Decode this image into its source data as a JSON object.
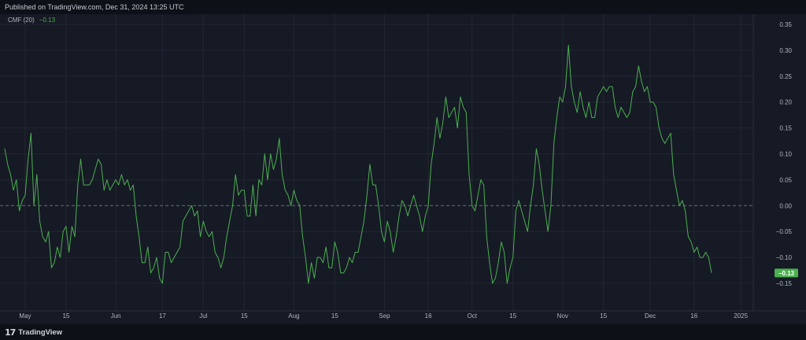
{
  "header": {
    "published_text": "Published on TradingView.com, Dec 31, 2024 13:25 UTC"
  },
  "legend": {
    "indicator": "CMF (20)",
    "value": "−0.13"
  },
  "footer": {
    "logo_text": "TradingView",
    "logo_mark": "17"
  },
  "colors": {
    "background": "#161a25",
    "grid": "#232733",
    "line": "#4caf50",
    "zero_line": "#6b6f7a",
    "badge": "#4caf50",
    "axis_text": "#b2b5be"
  },
  "chart_data": {
    "type": "line",
    "title": "",
    "xlabel": "",
    "ylabel": "",
    "ylim": [
      -0.165,
      0.355
    ],
    "grid": true,
    "zero_line": "dashed",
    "last_value_label": "−0.13",
    "y_ticks": [
      {
        "value": 0.35,
        "label": "0.35"
      },
      {
        "value": 0.3,
        "label": "0.30"
      },
      {
        "value": 0.25,
        "label": "0.25"
      },
      {
        "value": 0.2,
        "label": "0.20"
      },
      {
        "value": 0.15,
        "label": "0.15"
      },
      {
        "value": 0.1,
        "label": "0.10"
      },
      {
        "value": 0.05,
        "label": "0.05"
      },
      {
        "value": 0.0,
        "label": "0.00"
      },
      {
        "value": -0.05,
        "label": "−0.05"
      },
      {
        "value": -0.1,
        "label": "−0.10"
      },
      {
        "value": -0.15,
        "label": "−0.15"
      }
    ],
    "x_domain": [
      "2024-04-24",
      "2025-01-05"
    ],
    "x_ticks": [
      {
        "date": "2024-05-01",
        "label": "May"
      },
      {
        "date": "2024-05-15",
        "label": "15"
      },
      {
        "date": "2024-06-01",
        "label": "Jun"
      },
      {
        "date": "2024-06-17",
        "label": "17"
      },
      {
        "date": "2024-07-01",
        "label": "Jul"
      },
      {
        "date": "2024-07-15",
        "label": "15"
      },
      {
        "date": "2024-08-01",
        "label": "Aug"
      },
      {
        "date": "2024-08-15",
        "label": "15"
      },
      {
        "date": "2024-09-01",
        "label": "Sep"
      },
      {
        "date": "2024-09-16",
        "label": "16"
      },
      {
        "date": "2024-10-01",
        "label": "Oct"
      },
      {
        "date": "2024-10-15",
        "label": "15"
      },
      {
        "date": "2024-11-01",
        "label": "Nov"
      },
      {
        "date": "2024-11-15",
        "label": "15"
      },
      {
        "date": "2024-12-01",
        "label": "Dec"
      },
      {
        "date": "2024-12-16",
        "label": "16"
      },
      {
        "date": "2025-01-01",
        "label": "2025"
      }
    ],
    "series": [
      {
        "points": [
          [
            "2024-04-24",
            0.11
          ],
          [
            "2024-04-25",
            0.08
          ],
          [
            "2024-04-26",
            0.06
          ],
          [
            "2024-04-27",
            0.03
          ],
          [
            "2024-04-28",
            0.05
          ],
          [
            "2024-04-29",
            -0.01
          ],
          [
            "2024-04-30",
            0.01
          ],
          [
            "2024-05-01",
            0.02
          ],
          [
            "2024-05-02",
            0.09
          ],
          [
            "2024-05-03",
            0.14
          ],
          [
            "2024-05-04",
            0.0
          ],
          [
            "2024-05-05",
            0.06
          ],
          [
            "2024-05-06",
            -0.03
          ],
          [
            "2024-05-07",
            -0.06
          ],
          [
            "2024-05-08",
            -0.07
          ],
          [
            "2024-05-09",
            -0.05
          ],
          [
            "2024-05-10",
            -0.12
          ],
          [
            "2024-05-11",
            -0.11
          ],
          [
            "2024-05-12",
            -0.08
          ],
          [
            "2024-05-13",
            -0.1
          ],
          [
            "2024-05-14",
            -0.05
          ],
          [
            "2024-05-15",
            -0.04
          ],
          [
            "2024-05-16",
            -0.09
          ],
          [
            "2024-05-17",
            -0.04
          ],
          [
            "2024-05-18",
            -0.06
          ],
          [
            "2024-05-19",
            0.04
          ],
          [
            "2024-05-20",
            0.09
          ],
          [
            "2024-05-21",
            0.04
          ],
          [
            "2024-05-22",
            0.04
          ],
          [
            "2024-05-23",
            0.04
          ],
          [
            "2024-05-24",
            0.05
          ],
          [
            "2024-05-25",
            0.07
          ],
          [
            "2024-05-26",
            0.09
          ],
          [
            "2024-05-27",
            0.08
          ],
          [
            "2024-05-28",
            0.03
          ],
          [
            "2024-05-29",
            0.05
          ],
          [
            "2024-05-30",
            0.03
          ],
          [
            "2024-05-31",
            0.04
          ],
          [
            "2024-06-01",
            0.05
          ],
          [
            "2024-06-02",
            0.04
          ],
          [
            "2024-06-03",
            0.06
          ],
          [
            "2024-06-04",
            0.04
          ],
          [
            "2024-06-05",
            0.05
          ],
          [
            "2024-06-06",
            0.03
          ],
          [
            "2024-06-07",
            0.04
          ],
          [
            "2024-06-08",
            -0.02
          ],
          [
            "2024-06-09",
            -0.06
          ],
          [
            "2024-06-10",
            -0.11
          ],
          [
            "2024-06-11",
            -0.11
          ],
          [
            "2024-06-12",
            -0.08
          ],
          [
            "2024-06-13",
            -0.13
          ],
          [
            "2024-06-14",
            -0.12
          ],
          [
            "2024-06-15",
            -0.1
          ],
          [
            "2024-06-16",
            -0.14
          ],
          [
            "2024-06-17",
            -0.15
          ],
          [
            "2024-06-18",
            -0.09
          ],
          [
            "2024-06-19",
            -0.09
          ],
          [
            "2024-06-20",
            -0.11
          ],
          [
            "2024-06-21",
            -0.1
          ],
          [
            "2024-06-22",
            -0.09
          ],
          [
            "2024-06-23",
            -0.08
          ],
          [
            "2024-06-24",
            -0.03
          ],
          [
            "2024-06-25",
            -0.02
          ],
          [
            "2024-06-26",
            -0.01
          ],
          [
            "2024-06-27",
            0.0
          ],
          [
            "2024-06-28",
            -0.02
          ],
          [
            "2024-06-29",
            -0.01
          ],
          [
            "2024-06-30",
            -0.06
          ],
          [
            "2024-07-01",
            -0.03
          ],
          [
            "2024-07-02",
            -0.05
          ],
          [
            "2024-07-03",
            -0.06
          ],
          [
            "2024-07-04",
            -0.05
          ],
          [
            "2024-07-05",
            -0.09
          ],
          [
            "2024-07-06",
            -0.1
          ],
          [
            "2024-07-07",
            -0.12
          ],
          [
            "2024-07-08",
            -0.1
          ],
          [
            "2024-07-09",
            -0.06
          ],
          [
            "2024-07-10",
            -0.03
          ],
          [
            "2024-07-11",
            0.0
          ],
          [
            "2024-07-12",
            0.06
          ],
          [
            "2024-07-13",
            0.02
          ],
          [
            "2024-07-14",
            0.03
          ],
          [
            "2024-07-15",
            0.03
          ],
          [
            "2024-07-16",
            -0.02
          ],
          [
            "2024-07-17",
            -0.02
          ],
          [
            "2024-07-18",
            0.04
          ],
          [
            "2024-07-19",
            -0.02
          ],
          [
            "2024-07-20",
            0.05
          ],
          [
            "2024-07-21",
            0.04
          ],
          [
            "2024-07-22",
            0.1
          ],
          [
            "2024-07-23",
            0.05
          ],
          [
            "2024-07-24",
            0.1
          ],
          [
            "2024-07-25",
            0.07
          ],
          [
            "2024-07-26",
            0.09
          ],
          [
            "2024-07-27",
            0.13
          ],
          [
            "2024-07-28",
            0.06
          ],
          [
            "2024-07-29",
            0.03
          ],
          [
            "2024-07-30",
            0.02
          ],
          [
            "2024-07-31",
            0.0
          ],
          [
            "2024-08-01",
            0.03
          ],
          [
            "2024-08-02",
            0.01
          ],
          [
            "2024-08-03",
            0.0
          ],
          [
            "2024-08-04",
            -0.06
          ],
          [
            "2024-08-05",
            -0.1
          ],
          [
            "2024-08-06",
            -0.15
          ],
          [
            "2024-08-07",
            -0.11
          ],
          [
            "2024-08-08",
            -0.14
          ],
          [
            "2024-08-09",
            -0.1
          ],
          [
            "2024-08-10",
            -0.1
          ],
          [
            "2024-08-11",
            -0.11
          ],
          [
            "2024-08-12",
            -0.08
          ],
          [
            "2024-08-13",
            -0.12
          ],
          [
            "2024-08-14",
            -0.12
          ],
          [
            "2024-08-15",
            -0.07
          ],
          [
            "2024-08-16",
            -0.09
          ],
          [
            "2024-08-17",
            -0.13
          ],
          [
            "2024-08-18",
            -0.13
          ],
          [
            "2024-08-19",
            -0.12
          ],
          [
            "2024-08-20",
            -0.1
          ],
          [
            "2024-08-21",
            -0.11
          ],
          [
            "2024-08-22",
            -0.09
          ],
          [
            "2024-08-23",
            -0.09
          ],
          [
            "2024-08-24",
            -0.06
          ],
          [
            "2024-08-25",
            -0.03
          ],
          [
            "2024-08-26",
            0.02
          ],
          [
            "2024-08-27",
            0.08
          ],
          [
            "2024-08-28",
            0.04
          ],
          [
            "2024-08-29",
            0.04
          ],
          [
            "2024-08-30",
            0.0
          ],
          [
            "2024-08-31",
            -0.05
          ],
          [
            "2024-09-01",
            -0.07
          ],
          [
            "2024-09-02",
            -0.03
          ],
          [
            "2024-09-03",
            -0.05
          ],
          [
            "2024-09-04",
            -0.09
          ],
          [
            "2024-09-05",
            -0.06
          ],
          [
            "2024-09-06",
            -0.02
          ],
          [
            "2024-09-07",
            0.01
          ],
          [
            "2024-09-08",
            0.0
          ],
          [
            "2024-09-09",
            -0.02
          ],
          [
            "2024-09-10",
            0.0
          ],
          [
            "2024-09-11",
            0.02
          ],
          [
            "2024-09-12",
            0.0
          ],
          [
            "2024-09-13",
            -0.02
          ],
          [
            "2024-09-14",
            -0.05
          ],
          [
            "2024-09-15",
            -0.02
          ],
          [
            "2024-09-16",
            0.0
          ],
          [
            "2024-09-17",
            0.08
          ],
          [
            "2024-09-18",
            0.12
          ],
          [
            "2024-09-19",
            0.17
          ],
          [
            "2024-09-20",
            0.13
          ],
          [
            "2024-09-21",
            0.16
          ],
          [
            "2024-09-22",
            0.21
          ],
          [
            "2024-09-23",
            0.17
          ],
          [
            "2024-09-24",
            0.18
          ],
          [
            "2024-09-25",
            0.19
          ],
          [
            "2024-09-26",
            0.15
          ],
          [
            "2024-09-27",
            0.21
          ],
          [
            "2024-09-28",
            0.19
          ],
          [
            "2024-09-29",
            0.18
          ],
          [
            "2024-09-30",
            0.06
          ],
          [
            "2024-10-01",
            0.0
          ],
          [
            "2024-10-02",
            -0.01
          ],
          [
            "2024-10-03",
            0.02
          ],
          [
            "2024-10-04",
            0.05
          ],
          [
            "2024-10-05",
            0.04
          ],
          [
            "2024-10-06",
            -0.06
          ],
          [
            "2024-10-07",
            -0.11
          ],
          [
            "2024-10-08",
            -0.15
          ],
          [
            "2024-10-09",
            -0.14
          ],
          [
            "2024-10-10",
            -0.11
          ],
          [
            "2024-10-11",
            -0.07
          ],
          [
            "2024-10-12",
            -0.09
          ],
          [
            "2024-10-13",
            -0.15
          ],
          [
            "2024-10-14",
            -0.12
          ],
          [
            "2024-10-15",
            -0.1
          ],
          [
            "2024-10-16",
            -0.01
          ],
          [
            "2024-10-17",
            0.01
          ],
          [
            "2024-10-18",
            -0.01
          ],
          [
            "2024-10-19",
            -0.03
          ],
          [
            "2024-10-20",
            -0.05
          ],
          [
            "2024-10-21",
            0.0
          ],
          [
            "2024-10-22",
            0.04
          ],
          [
            "2024-10-23",
            0.11
          ],
          [
            "2024-10-24",
            0.08
          ],
          [
            "2024-10-25",
            0.03
          ],
          [
            "2024-10-26",
            -0.01
          ],
          [
            "2024-10-27",
            -0.05
          ],
          [
            "2024-10-28",
            0.0
          ],
          [
            "2024-10-29",
            0.12
          ],
          [
            "2024-10-30",
            0.17
          ],
          [
            "2024-10-31",
            0.21
          ],
          [
            "2024-11-01",
            0.2
          ],
          [
            "2024-11-02",
            0.23
          ],
          [
            "2024-11-03",
            0.31
          ],
          [
            "2024-11-04",
            0.23
          ],
          [
            "2024-11-05",
            0.2
          ],
          [
            "2024-11-06",
            0.18
          ],
          [
            "2024-11-07",
            0.22
          ],
          [
            "2024-11-08",
            0.19
          ],
          [
            "2024-11-09",
            0.17
          ],
          [
            "2024-11-10",
            0.2
          ],
          [
            "2024-11-11",
            0.17
          ],
          [
            "2024-11-12",
            0.17
          ],
          [
            "2024-11-13",
            0.21
          ],
          [
            "2024-11-14",
            0.22
          ],
          [
            "2024-11-15",
            0.23
          ],
          [
            "2024-11-16",
            0.22
          ],
          [
            "2024-11-17",
            0.23
          ],
          [
            "2024-11-18",
            0.23
          ],
          [
            "2024-11-19",
            0.19
          ],
          [
            "2024-11-20",
            0.17
          ],
          [
            "2024-11-21",
            0.19
          ],
          [
            "2024-11-22",
            0.18
          ],
          [
            "2024-11-23",
            0.17
          ],
          [
            "2024-11-24",
            0.18
          ],
          [
            "2024-11-25",
            0.22
          ],
          [
            "2024-11-26",
            0.23
          ],
          [
            "2024-11-27",
            0.27
          ],
          [
            "2024-11-28",
            0.24
          ],
          [
            "2024-11-29",
            0.22
          ],
          [
            "2024-11-30",
            0.23
          ],
          [
            "2024-12-01",
            0.2
          ],
          [
            "2024-12-02",
            0.2
          ],
          [
            "2024-12-03",
            0.19
          ],
          [
            "2024-12-04",
            0.15
          ],
          [
            "2024-12-05",
            0.13
          ],
          [
            "2024-12-06",
            0.12
          ],
          [
            "2024-12-07",
            0.13
          ],
          [
            "2024-12-08",
            0.14
          ],
          [
            "2024-12-09",
            0.06
          ],
          [
            "2024-12-10",
            0.03
          ],
          [
            "2024-12-11",
            0.0
          ],
          [
            "2024-12-12",
            0.01
          ],
          [
            "2024-12-13",
            -0.01
          ],
          [
            "2024-12-14",
            -0.06
          ],
          [
            "2024-12-15",
            -0.07
          ],
          [
            "2024-12-16",
            -0.09
          ],
          [
            "2024-12-17",
            -0.08
          ],
          [
            "2024-12-18",
            -0.1
          ],
          [
            "2024-12-19",
            -0.1
          ],
          [
            "2024-12-20",
            -0.09
          ],
          [
            "2024-12-21",
            -0.1
          ],
          [
            "2024-12-22",
            -0.13
          ]
        ]
      }
    ]
  }
}
